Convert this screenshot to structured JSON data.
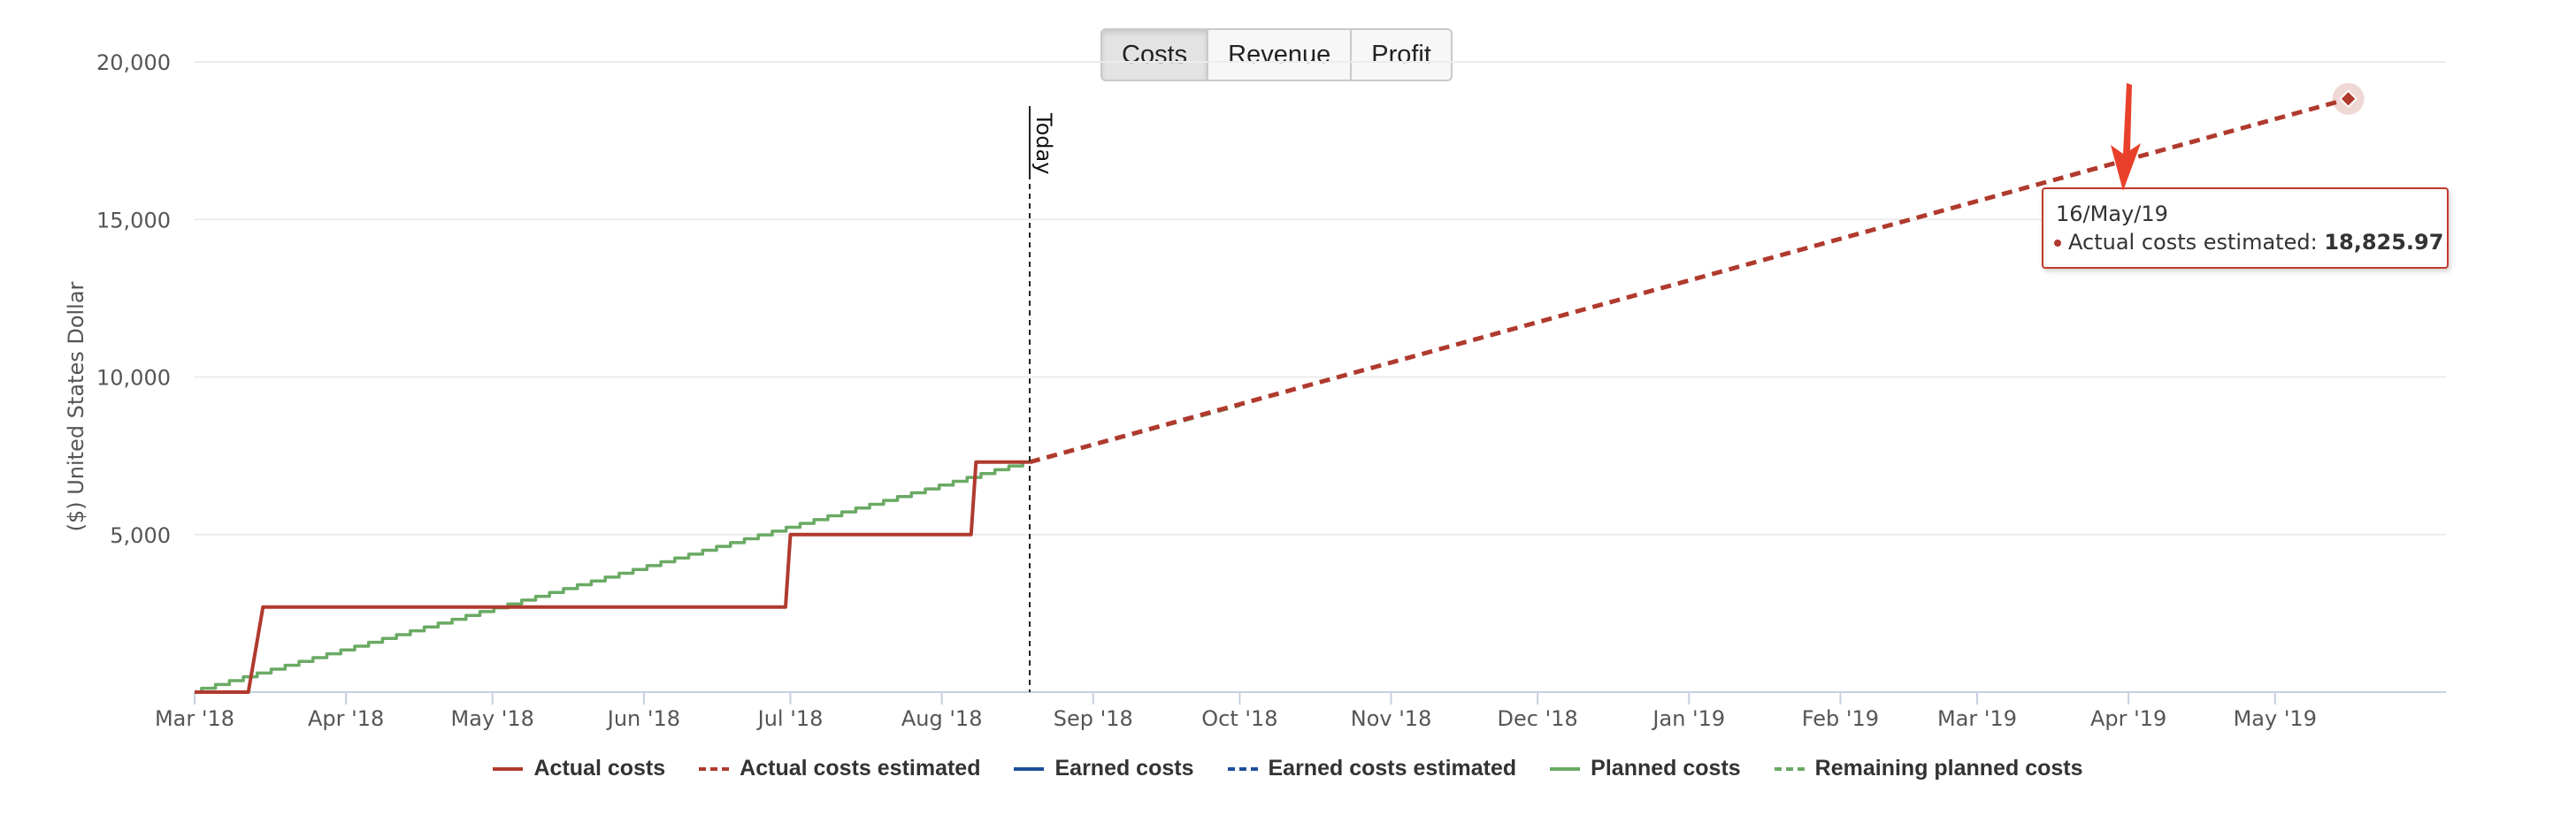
{
  "tabs": [
    {
      "label": "Costs",
      "active": true
    },
    {
      "label": "Revenue",
      "active": false
    },
    {
      "label": "Profit",
      "active": false
    }
  ],
  "colors": {
    "actual": "#b03a2e",
    "earned": "#1f4e9c",
    "planned": "#6aaa64",
    "grid": "#ececec",
    "axis": "#c6d0e0"
  },
  "tooltip": {
    "date": "16/May/19",
    "label": "Actual costs estimated: ",
    "value": "18,825.97"
  },
  "chart_data": {
    "type": "line",
    "ylabel": "($) United States Dollar",
    "y_ticks": [
      "5,000",
      "10,000",
      "15,000",
      "20,000"
    ],
    "y_tick_values": [
      5000,
      10000,
      15000,
      20000
    ],
    "ylim": [
      0,
      20000
    ],
    "x_range": [
      "2018-03-01",
      "2019-06-05"
    ],
    "x_ticks": [
      {
        "label": "Mar '18",
        "date": "2018-03-01"
      },
      {
        "label": "Apr '18",
        "date": "2018-04-01"
      },
      {
        "label": "May '18",
        "date": "2018-05-01"
      },
      {
        "label": "Jun '18",
        "date": "2018-06-01"
      },
      {
        "label": "Jul '18",
        "date": "2018-07-01"
      },
      {
        "label": "Aug '18",
        "date": "2018-08-01"
      },
      {
        "label": "Sep '18",
        "date": "2018-09-01"
      },
      {
        "label": "Oct '18",
        "date": "2018-10-01"
      },
      {
        "label": "Nov '18",
        "date": "2018-11-01"
      },
      {
        "label": "Dec '18",
        "date": "2018-12-01"
      },
      {
        "label": "Jan '19",
        "date": "2019-01-01"
      },
      {
        "label": "Feb '19",
        "date": "2019-02-01"
      },
      {
        "label": "Mar '19",
        "date": "2019-03-01"
      },
      {
        "label": "Apr '19",
        "date": "2019-04-01"
      },
      {
        "label": "May '19",
        "date": "2019-05-01"
      }
    ],
    "today": {
      "label": "Today",
      "date": "2018-08-19"
    },
    "grid": true,
    "legend_position": "bottom",
    "series": [
      {
        "name": "Actual costs",
        "style": "solid",
        "color": "#b03a2e",
        "points": [
          [
            "2018-03-01",
            0
          ],
          [
            "2018-03-12",
            0
          ],
          [
            "2018-03-15",
            2700
          ],
          [
            "2018-06-30",
            2700
          ],
          [
            "2018-07-01",
            5000
          ],
          [
            "2018-08-07",
            5000
          ],
          [
            "2018-08-08",
            7300
          ],
          [
            "2018-08-19",
            7300
          ]
        ]
      },
      {
        "name": "Actual costs estimated",
        "style": "dashed",
        "color": "#b03a2e",
        "points": [
          [
            "2018-08-19",
            7300
          ],
          [
            "2019-05-16",
            18825.97
          ]
        ]
      },
      {
        "name": "Earned costs",
        "style": "solid",
        "color": "#1f4e9c",
        "points": []
      },
      {
        "name": "Earned costs estimated",
        "style": "dashed",
        "color": "#1f4e9c",
        "points": []
      },
      {
        "name": "Planned costs",
        "style": "solid",
        "color": "#6aaa64",
        "points": [
          [
            "2018-03-01",
            0
          ],
          [
            "2018-08-19",
            7300
          ]
        ]
      },
      {
        "name": "Remaining planned costs",
        "style": "dashed",
        "color": "#6aaa64",
        "points": [
          [
            "2018-08-19",
            7300
          ],
          [
            "2018-10-01",
            9100
          ]
        ]
      }
    ]
  }
}
